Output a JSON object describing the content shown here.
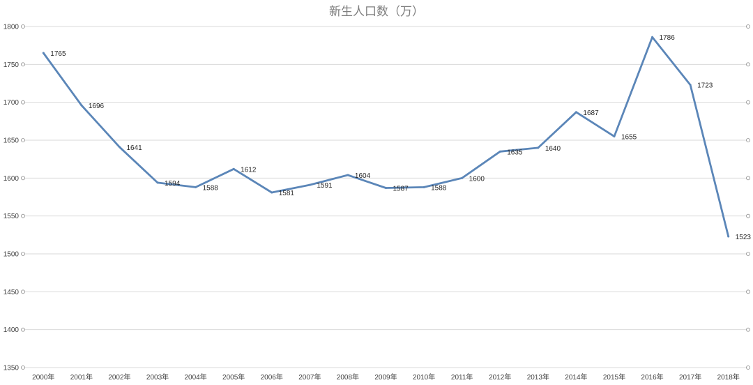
{
  "chart_data": {
    "type": "line",
    "title": "新生人口数（万）",
    "categories": [
      "2000年",
      "2001年",
      "2002年",
      "2003年",
      "2004年",
      "2005年",
      "2006年",
      "2007年",
      "2008年",
      "2009年",
      "2010年",
      "2011年",
      "2012年",
      "2013年",
      "2014年",
      "2015年",
      "2016年",
      "2017年",
      "2018年"
    ],
    "series": [
      {
        "values": [
          1765,
          1696,
          1641,
          1594,
          1588,
          1612,
          1581,
          1591,
          1604,
          1587,
          1588,
          1600,
          1635,
          1640,
          1687,
          1655,
          1786,
          1723,
          1523
        ]
      }
    ],
    "ylim": [
      1350,
      1800
    ],
    "yticks": [
      1350,
      1400,
      1450,
      1500,
      1550,
      1600,
      1650,
      1700,
      1750,
      1800
    ],
    "grid": true,
    "data_labels": true,
    "legend": "none",
    "line_color": "#5b86b8",
    "grid_color": "#d9d9d9"
  }
}
